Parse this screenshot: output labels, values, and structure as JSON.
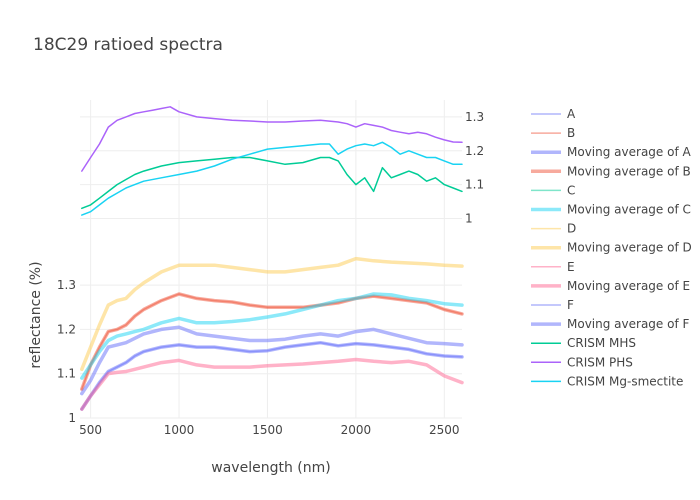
{
  "chart_data": {
    "type": "line",
    "title": "18C29 ratioed spectra",
    "xlabel": "wavelength (nm)",
    "ylabel": "reflectance (%)",
    "xlim": [
      440,
      2600
    ],
    "ylim_lower": [
      1.0,
      1.42
    ],
    "ylim_upper": [
      0.96,
      1.35
    ],
    "grid": true,
    "legend_position": "right",
    "x_ticks": [
      500,
      1000,
      1500,
      2000,
      2500
    ],
    "y_ticks_lower": [
      1,
      1.1,
      1.2,
      1.3
    ],
    "y_ticks_upper": [
      1,
      1.1,
      1.2,
      1.3
    ],
    "series": [
      {
        "name": "A",
        "color": "#636efa",
        "opacity": 0.5,
        "width": 1.5,
        "axis": "lower",
        "avg": false,
        "x": [
          450,
          500,
          550,
          600,
          650,
          700,
          750,
          800,
          900,
          1000,
          1100,
          1200,
          1300,
          1400,
          1500,
          1600,
          1700,
          1800,
          1900,
          2000,
          2100,
          2200,
          2300,
          2400,
          2500,
          2600
        ],
        "y": [
          1.02,
          1.05,
          1.08,
          1.105,
          1.115,
          1.125,
          1.14,
          1.15,
          1.16,
          1.165,
          1.16,
          1.16,
          1.155,
          1.15,
          1.152,
          1.16,
          1.165,
          1.17,
          1.163,
          1.168,
          1.165,
          1.16,
          1.155,
          1.145,
          1.14,
          1.138
        ]
      },
      {
        "name": "B",
        "color": "#ef553b",
        "opacity": 0.5,
        "width": 1.5,
        "axis": "lower",
        "avg": false,
        "x": [
          450,
          500,
          550,
          600,
          650,
          700,
          750,
          800,
          900,
          1000,
          1100,
          1200,
          1300,
          1400,
          1500,
          1600,
          1700,
          1800,
          1900,
          2000,
          2100,
          2200,
          2300,
          2400,
          2500,
          2600
        ],
        "y": [
          1.065,
          1.12,
          1.16,
          1.195,
          1.2,
          1.21,
          1.23,
          1.245,
          1.265,
          1.28,
          1.27,
          1.265,
          1.262,
          1.255,
          1.25,
          1.25,
          1.25,
          1.255,
          1.26,
          1.27,
          1.275,
          1.27,
          1.265,
          1.26,
          1.245,
          1.235
        ]
      },
      {
        "name": "Moving average of A",
        "color": "#636efa",
        "opacity": 0.5,
        "width": 3.5,
        "axis": "lower",
        "avg": true,
        "x": [
          450,
          500,
          550,
          600,
          650,
          700,
          750,
          800,
          900,
          1000,
          1100,
          1200,
          1300,
          1400,
          1500,
          1600,
          1700,
          1800,
          1900,
          2000,
          2100,
          2200,
          2300,
          2400,
          2500,
          2600
        ],
        "y": [
          1.02,
          1.05,
          1.08,
          1.105,
          1.115,
          1.125,
          1.14,
          1.15,
          1.16,
          1.165,
          1.16,
          1.16,
          1.155,
          1.15,
          1.152,
          1.16,
          1.165,
          1.17,
          1.163,
          1.168,
          1.165,
          1.16,
          1.155,
          1.145,
          1.14,
          1.138
        ]
      },
      {
        "name": "Moving average of B",
        "color": "#ef553b",
        "opacity": 0.5,
        "width": 3.5,
        "axis": "lower",
        "avg": true,
        "x": [
          450,
          500,
          550,
          600,
          650,
          700,
          750,
          800,
          900,
          1000,
          1100,
          1200,
          1300,
          1400,
          1500,
          1600,
          1700,
          1800,
          1900,
          2000,
          2100,
          2200,
          2300,
          2400,
          2500,
          2600
        ],
        "y": [
          1.065,
          1.12,
          1.16,
          1.195,
          1.2,
          1.21,
          1.23,
          1.245,
          1.265,
          1.28,
          1.27,
          1.265,
          1.262,
          1.255,
          1.25,
          1.25,
          1.25,
          1.255,
          1.26,
          1.27,
          1.275,
          1.27,
          1.265,
          1.26,
          1.245,
          1.235
        ]
      },
      {
        "name": "C",
        "color": "#00cc96",
        "opacity": 0,
        "width": 1.5,
        "axis": "lower",
        "avg": false,
        "x": [
          450,
          2600
        ],
        "y": [
          1.09,
          1.25
        ]
      },
      {
        "name": "Moving average of C",
        "color": "#19d3f3",
        "opacity": 0.5,
        "width": 3.5,
        "axis": "lower",
        "avg": true,
        "x": [
          450,
          500,
          550,
          600,
          650,
          700,
          750,
          800,
          900,
          1000,
          1100,
          1200,
          1300,
          1400,
          1500,
          1600,
          1700,
          1800,
          1900,
          2000,
          2100,
          2200,
          2300,
          2400,
          2500,
          2600
        ],
        "y": [
          1.09,
          1.12,
          1.15,
          1.175,
          1.185,
          1.19,
          1.195,
          1.2,
          1.215,
          1.225,
          1.215,
          1.215,
          1.218,
          1.222,
          1.228,
          1.235,
          1.245,
          1.255,
          1.265,
          1.27,
          1.28,
          1.278,
          1.27,
          1.265,
          1.258,
          1.255
        ]
      },
      {
        "name": "D",
        "color": "#fecb52",
        "opacity": 0,
        "width": 1.5,
        "axis": "lower",
        "avg": false,
        "x": [
          450,
          2600
        ],
        "y": [
          1.11,
          1.34
        ]
      },
      {
        "name": "Moving average of D",
        "color": "#fecb52",
        "opacity": 0.5,
        "width": 3.5,
        "axis": "lower",
        "avg": true,
        "x": [
          450,
          500,
          550,
          600,
          650,
          700,
          750,
          800,
          900,
          1000,
          1100,
          1200,
          1300,
          1400,
          1500,
          1600,
          1700,
          1800,
          1900,
          2000,
          2100,
          2200,
          2300,
          2400,
          2500,
          2600
        ],
        "y": [
          1.11,
          1.16,
          1.21,
          1.255,
          1.265,
          1.27,
          1.29,
          1.305,
          1.33,
          1.345,
          1.345,
          1.345,
          1.34,
          1.335,
          1.33,
          1.33,
          1.335,
          1.34,
          1.345,
          1.36,
          1.355,
          1.352,
          1.35,
          1.348,
          1.345,
          1.343
        ]
      },
      {
        "name": "E",
        "color": "#ff6692",
        "opacity": 0,
        "width": 1.5,
        "axis": "lower",
        "avg": false,
        "x": [
          450,
          2600
        ],
        "y": [
          1.02,
          1.08
        ]
      },
      {
        "name": "Moving average of E",
        "color": "#ff6692",
        "opacity": 0.5,
        "width": 3.5,
        "axis": "lower",
        "avg": true,
        "x": [
          450,
          500,
          550,
          600,
          650,
          700,
          750,
          800,
          900,
          1000,
          1100,
          1200,
          1300,
          1400,
          1500,
          1600,
          1700,
          1800,
          1900,
          2000,
          2100,
          2200,
          2300,
          2400,
          2500,
          2600
        ],
        "y": [
          1.02,
          1.05,
          1.075,
          1.1,
          1.103,
          1.105,
          1.11,
          1.115,
          1.125,
          1.13,
          1.12,
          1.115,
          1.115,
          1.115,
          1.118,
          1.12,
          1.122,
          1.125,
          1.128,
          1.132,
          1.128,
          1.125,
          1.128,
          1.12,
          1.095,
          1.08
        ]
      },
      {
        "name": "F",
        "color": "#636efa",
        "opacity": 0,
        "width": 1.5,
        "axis": "lower",
        "avg": false,
        "x": [
          450,
          2600
        ],
        "y": [
          1.055,
          1.165
        ]
      },
      {
        "name": "Moving average of F",
        "color": "#636efa",
        "opacity": 0.5,
        "width": 3.5,
        "axis": "lower",
        "avg": true,
        "x": [
          450,
          500,
          550,
          600,
          650,
          700,
          750,
          800,
          900,
          1000,
          1100,
          1200,
          1300,
          1400,
          1500,
          1600,
          1700,
          1800,
          1900,
          2000,
          2100,
          2200,
          2300,
          2400,
          2500,
          2600
        ],
        "y": [
          1.055,
          1.085,
          1.125,
          1.16,
          1.165,
          1.17,
          1.18,
          1.19,
          1.2,
          1.205,
          1.19,
          1.185,
          1.18,
          1.175,
          1.175,
          1.178,
          1.185,
          1.19,
          1.185,
          1.195,
          1.2,
          1.19,
          1.18,
          1.17,
          1.168,
          1.165
        ]
      },
      {
        "name": "CRISM MHS",
        "color": "#00cc96",
        "opacity": 1,
        "width": 1.5,
        "axis": "upper",
        "avg": false,
        "x": [
          450,
          500,
          550,
          600,
          650,
          700,
          750,
          800,
          900,
          1000,
          1100,
          1200,
          1300,
          1400,
          1500,
          1600,
          1700,
          1800,
          1850,
          1900,
          1950,
          2000,
          2050,
          2100,
          2150,
          2200,
          2250,
          2300,
          2350,
          2400,
          2450,
          2500,
          2550,
          2600
        ],
        "y": [
          1.03,
          1.04,
          1.06,
          1.08,
          1.1,
          1.115,
          1.13,
          1.14,
          1.155,
          1.165,
          1.17,
          1.175,
          1.18,
          1.18,
          1.17,
          1.16,
          1.165,
          1.18,
          1.18,
          1.17,
          1.13,
          1.1,
          1.12,
          1.08,
          1.15,
          1.12,
          1.13,
          1.14,
          1.13,
          1.11,
          1.12,
          1.1,
          1.09,
          1.08
        ]
      },
      {
        "name": "CRISM PHS",
        "color": "#ab63fa",
        "opacity": 1,
        "width": 1.5,
        "axis": "upper",
        "avg": false,
        "x": [
          450,
          500,
          550,
          600,
          650,
          700,
          750,
          800,
          850,
          900,
          950,
          1000,
          1100,
          1200,
          1300,
          1400,
          1500,
          1600,
          1700,
          1800,
          1900,
          1950,
          2000,
          2050,
          2100,
          2150,
          2200,
          2250,
          2300,
          2350,
          2400,
          2450,
          2500,
          2550,
          2600
        ],
        "y": [
          1.14,
          1.18,
          1.22,
          1.27,
          1.29,
          1.3,
          1.31,
          1.315,
          1.32,
          1.325,
          1.33,
          1.315,
          1.3,
          1.295,
          1.29,
          1.288,
          1.285,
          1.285,
          1.288,
          1.29,
          1.285,
          1.28,
          1.27,
          1.28,
          1.275,
          1.27,
          1.26,
          1.255,
          1.25,
          1.255,
          1.25,
          1.24,
          1.232,
          1.226,
          1.225
        ]
      },
      {
        "name": "CRISM Mg-smectite",
        "color": "#19d3f3",
        "opacity": 1,
        "width": 1.5,
        "axis": "upper",
        "avg": false,
        "x": [
          450,
          500,
          550,
          600,
          650,
          700,
          750,
          800,
          900,
          1000,
          1100,
          1200,
          1300,
          1400,
          1500,
          1600,
          1700,
          1800,
          1850,
          1900,
          1950,
          2000,
          2050,
          2100,
          2150,
          2200,
          2250,
          2300,
          2350,
          2400,
          2450,
          2500,
          2550,
          2600
        ],
        "y": [
          1.01,
          1.02,
          1.04,
          1.06,
          1.075,
          1.09,
          1.1,
          1.11,
          1.12,
          1.13,
          1.14,
          1.155,
          1.175,
          1.19,
          1.205,
          1.21,
          1.215,
          1.22,
          1.22,
          1.19,
          1.205,
          1.215,
          1.22,
          1.215,
          1.225,
          1.21,
          1.19,
          1.2,
          1.19,
          1.18,
          1.18,
          1.17,
          1.16,
          1.16
        ]
      }
    ]
  }
}
